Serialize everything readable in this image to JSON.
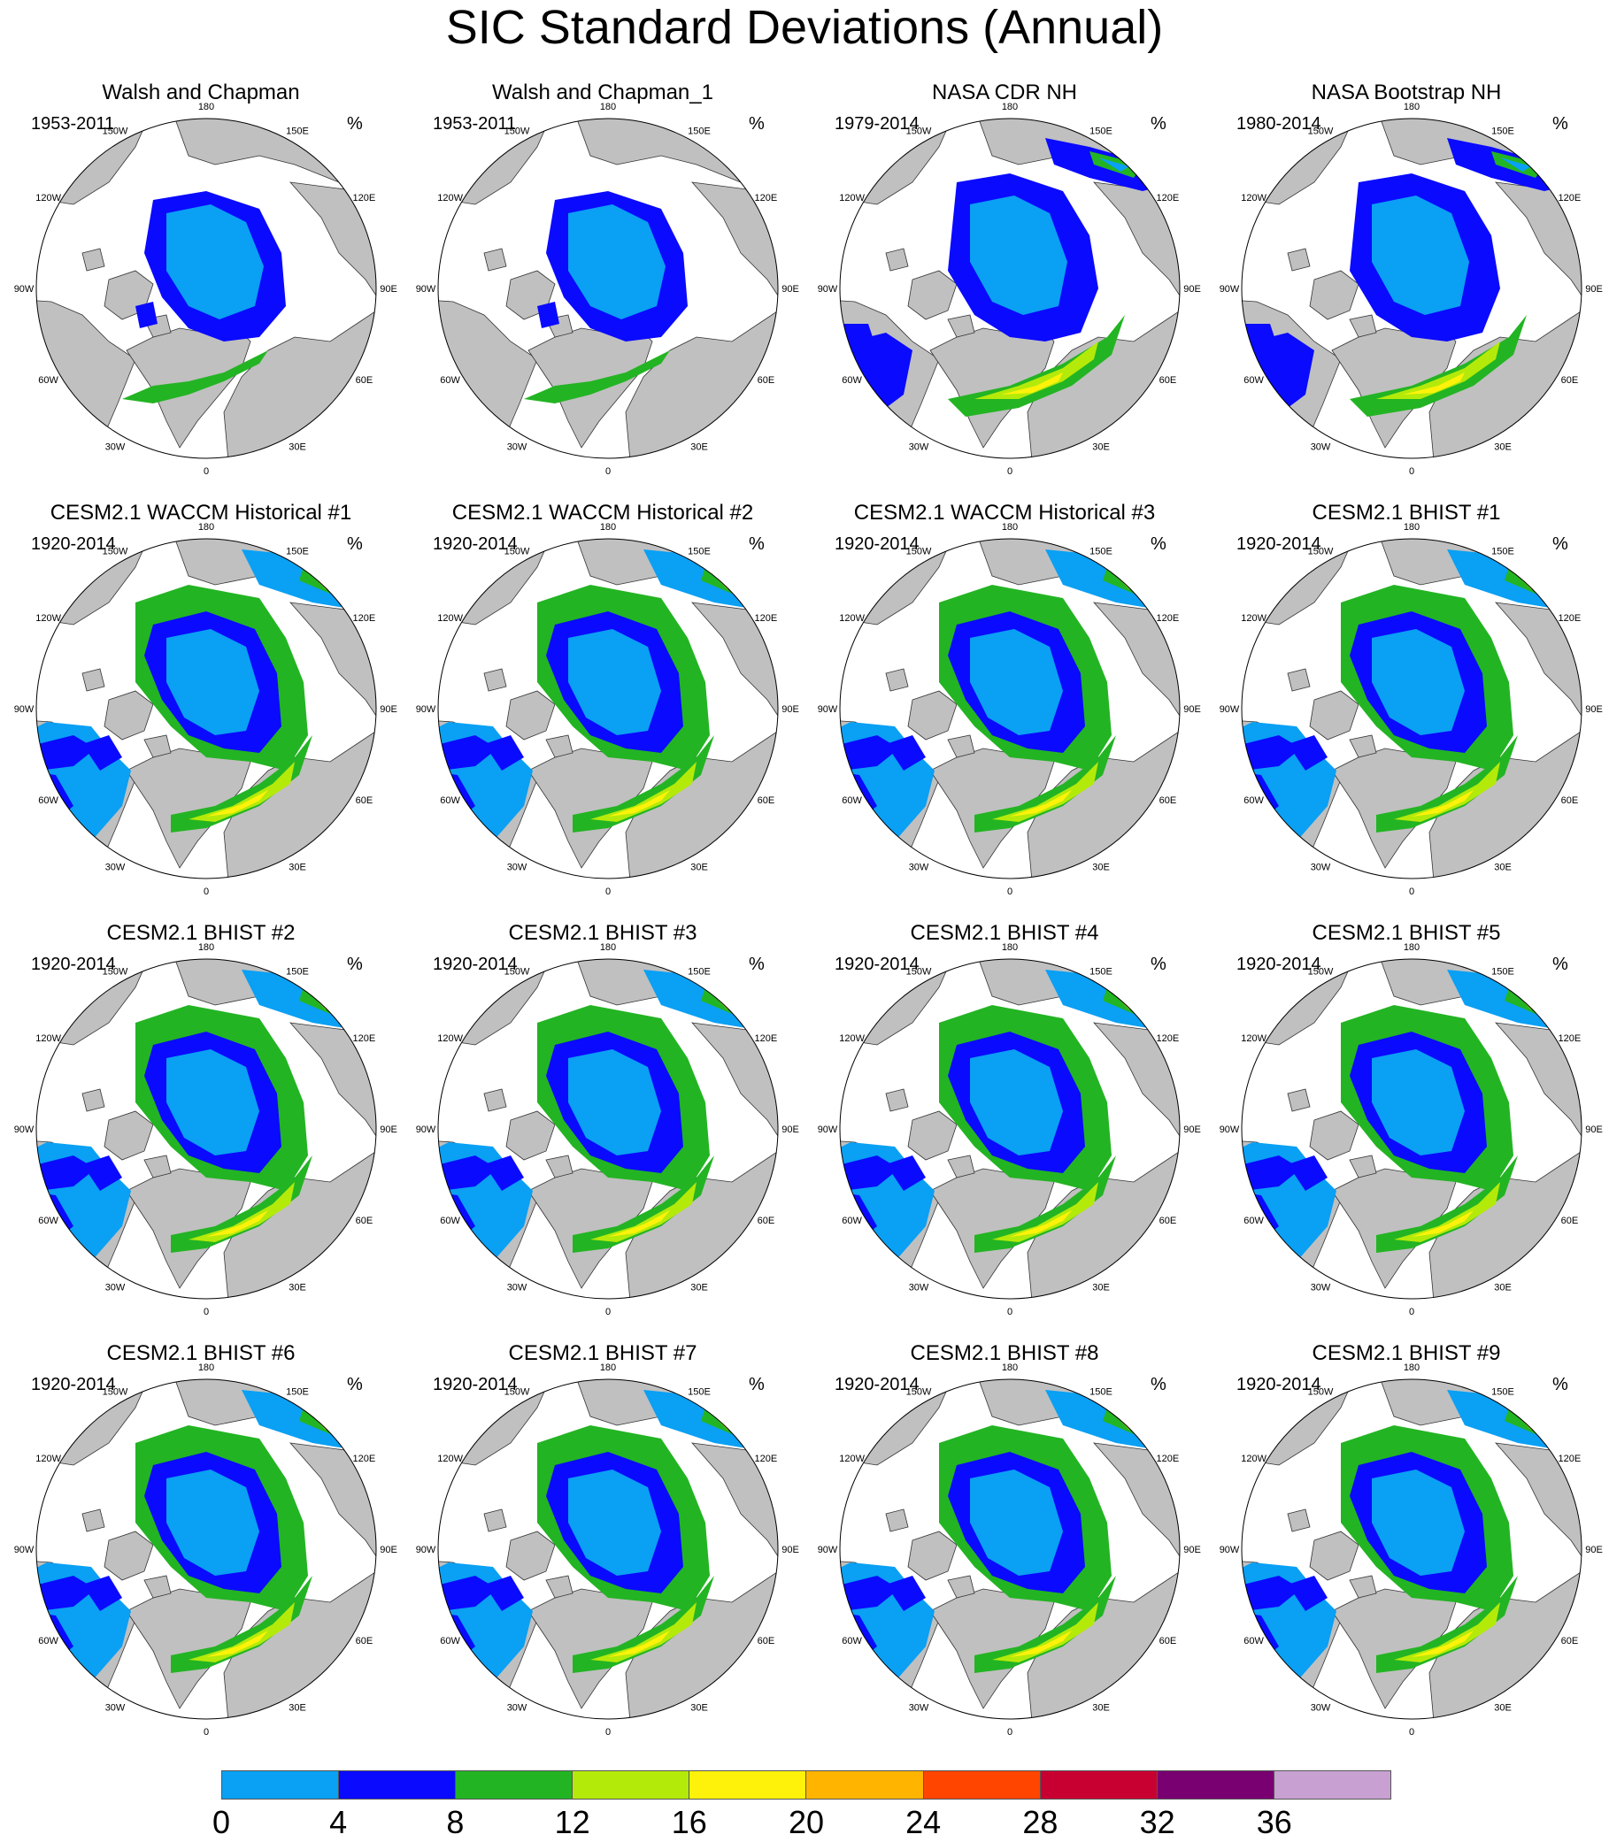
{
  "title": "SIC Standard Deviations (Annual)",
  "units": "%",
  "longitude_labels": {
    "lon_180": "180",
    "lon_150w": "150W",
    "lon_120w": "120W",
    "lon_90w": "90W",
    "lon_60w": "60W",
    "lon_30w": "30W",
    "lon_0": "0",
    "lon_30e": "30E",
    "lon_60e": "60E",
    "lon_90e": "90E",
    "lon_120e": "120E",
    "lon_150e": "150E"
  },
  "colors": {
    "land": "#c0c0c0",
    "ocean": "#ffffff",
    "scale": [
      "#0aa0f4",
      "#0a0aff",
      "#23b423",
      "#b4ea0a",
      "#fff20a",
      "#ffb400",
      "#ff4500",
      "#c80032",
      "#780070",
      "#c8a0d2"
    ]
  },
  "colorbar": {
    "labels": [
      "0",
      "4",
      "8",
      "12",
      "16",
      "20",
      "24",
      "28",
      "32",
      "36"
    ]
  },
  "panels": [
    {
      "title": "Walsh and Chapman",
      "period": "1953-2011",
      "pattern": "obs_wc"
    },
    {
      "title": "Walsh and Chapman_1",
      "period": "1953-2011",
      "pattern": "obs_wc"
    },
    {
      "title": "NASA CDR NH",
      "period": "1979-2014",
      "pattern": "obs_nasa"
    },
    {
      "title": "NASA Bootstrap NH",
      "period": "1980-2014",
      "pattern": "obs_nasa"
    },
    {
      "title": "CESM2.1 WACCM Historical #1",
      "period": "1920-2014",
      "pattern": "model"
    },
    {
      "title": "CESM2.1 WACCM Historical #2",
      "period": "1920-2014",
      "pattern": "model"
    },
    {
      "title": "CESM2.1 WACCM Historical #3",
      "period": "1920-2014",
      "pattern": "model"
    },
    {
      "title": "CESM2.1 BHIST #1",
      "period": "1920-2014",
      "pattern": "model"
    },
    {
      "title": "CESM2.1 BHIST #2",
      "period": "1920-2014",
      "pattern": "model"
    },
    {
      "title": "CESM2.1 BHIST #3",
      "period": "1920-2014",
      "pattern": "model"
    },
    {
      "title": "CESM2.1 BHIST #4",
      "period": "1920-2014",
      "pattern": "model"
    },
    {
      "title": "CESM2.1 BHIST #5",
      "period": "1920-2014",
      "pattern": "model"
    },
    {
      "title": "CESM2.1 BHIST #6",
      "period": "1920-2014",
      "pattern": "model"
    },
    {
      "title": "CESM2.1 BHIST #7",
      "period": "1920-2014",
      "pattern": "model"
    },
    {
      "title": "CESM2.1 BHIST #8",
      "period": "1920-2014",
      "pattern": "model"
    },
    {
      "title": "CESM2.1 BHIST #9",
      "period": "1920-2014",
      "pattern": "model"
    }
  ]
}
